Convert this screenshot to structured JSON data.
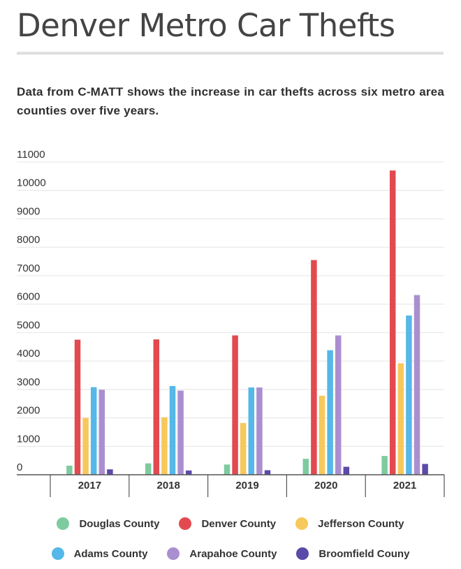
{
  "header": {
    "title": "Denver Metro Car Thefts",
    "subtitle": "Data from C-MATT shows the increase in car thefts across six metro area counties over five years."
  },
  "chart_data": {
    "type": "bar",
    "categories": [
      "2017",
      "2018",
      "2019",
      "2020",
      "2021"
    ],
    "series": [
      {
        "name": "Douglas County",
        "color": "#7ecb9f",
        "values": [
          320,
          400,
          360,
          560,
          660
        ]
      },
      {
        "name": "Denver County",
        "color": "#e24a50",
        "values": [
          4750,
          4760,
          4900,
          7550,
          10700
        ]
      },
      {
        "name": "Jefferson County",
        "color": "#f7c85c",
        "values": [
          2000,
          2020,
          1820,
          2780,
          3920
        ]
      },
      {
        "name": "Adams County",
        "color": "#55b8e8",
        "values": [
          3080,
          3120,
          3070,
          4380,
          5600
        ]
      },
      {
        "name": "Arapahoe County",
        "color": "#aa8fd0",
        "values": [
          2990,
          2960,
          3070,
          4900,
          6320
        ]
      },
      {
        "name": "Broomfield Couny",
        "color": "#5c4aa8",
        "values": [
          190,
          150,
          160,
          280,
          380
        ]
      }
    ],
    "y_ticks": [
      "0",
      "1000",
      "2000",
      "3000",
      "4000",
      "5000",
      "6000",
      "7000",
      "8000",
      "9000",
      "10000",
      "11000"
    ],
    "ylim": [
      0,
      11000
    ],
    "grid": true,
    "legend_position": "bottom"
  }
}
